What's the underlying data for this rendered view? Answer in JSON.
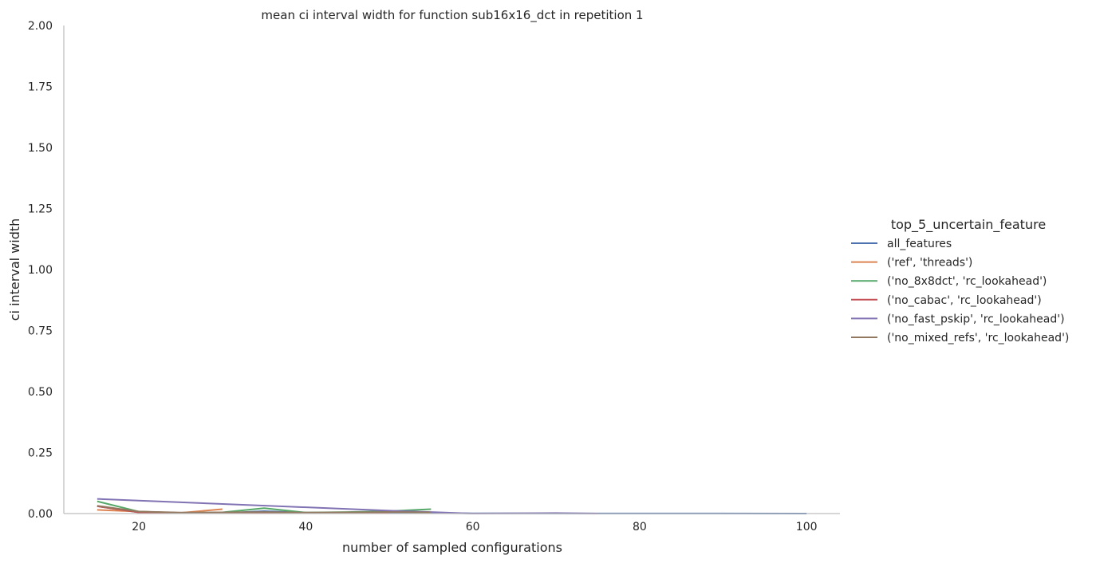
{
  "chart_data": {
    "type": "line",
    "title": "mean ci interval width for function sub16x16_dct in repetition 1",
    "xlabel": "number of sampled configurations",
    "ylabel": "ci interval width",
    "xlim": [
      11,
      104
    ],
    "ylim": [
      0,
      2
    ],
    "xticks": [
      "20",
      "40",
      "60",
      "80",
      "100"
    ],
    "yticks": [
      "0.00",
      "0.25",
      "0.50",
      "0.75",
      "1.00",
      "1.25",
      "1.50",
      "1.75",
      "2.00"
    ],
    "grid": false,
    "legend_title": "top_5_uncertain_feature",
    "legend_position": "right",
    "series": [
      {
        "name": "all_features",
        "color": "#4c72b0",
        "x": [
          15,
          20,
          25,
          30,
          35,
          40,
          45,
          50,
          55,
          60,
          70,
          80,
          90,
          100
        ],
        "y": [
          0.03,
          0.005,
          0.003,
          0.002,
          0.01,
          0.004,
          0.003,
          0.002,
          0.002,
          0.001,
          0.0005,
          0.0005,
          0.0003,
          0.0002
        ]
      },
      {
        "name": "('ref', 'threads')",
        "color": "#dd8452",
        "x": [
          15,
          20,
          25,
          30
        ],
        "y": [
          0.015,
          0.008,
          0.003,
          0.018
        ]
      },
      {
        "name": "('no_8x8dct', 'rc_lookahead')",
        "color": "#55a868",
        "x": [
          15,
          20,
          25,
          30,
          35,
          40,
          45,
          50,
          55
        ],
        "y": [
          0.05,
          0.008,
          0.002,
          0.005,
          0.022,
          0.004,
          0.006,
          0.01,
          0.018
        ]
      },
      {
        "name": "('no_cabac', 'rc_lookahead')",
        "color": "#c44e52",
        "x": [
          15,
          20,
          25,
          30,
          35,
          40,
          45,
          50
        ],
        "y": [
          0.03,
          0.005,
          0.002,
          0.003,
          0.004,
          0.002,
          0.003,
          0.002
        ]
      },
      {
        "name": "('no_fast_pskip', 'rc_lookahead')",
        "color": "#8172b3",
        "x": [
          15,
          50,
          60,
          70,
          75
        ],
        "y": [
          0.06,
          0.012,
          0.0,
          0.002,
          0.0
        ]
      },
      {
        "name": "('no_mixed_refs', 'rc_lookahead')",
        "color": "#937860",
        "x": [
          15,
          20,
          25,
          30,
          35,
          40,
          45,
          50,
          55
        ],
        "y": [
          0.032,
          0.008,
          0.004,
          0.005,
          0.006,
          0.004,
          0.005,
          0.006,
          0.005
        ]
      }
    ]
  }
}
